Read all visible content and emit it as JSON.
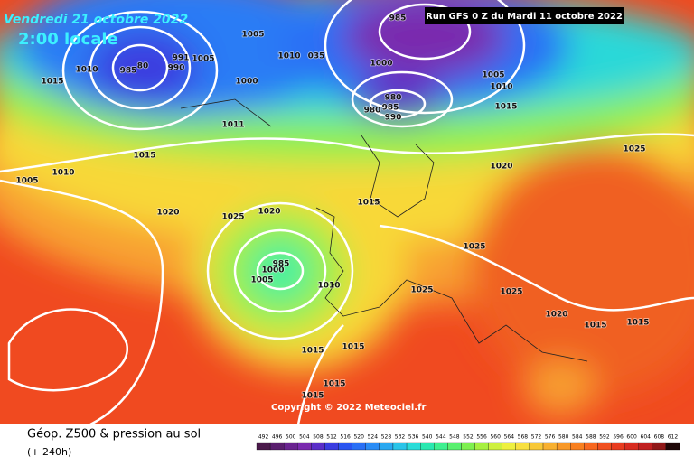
{
  "header": {
    "date": "Vendredi 21 octobre 2022",
    "time": "2:00 locale",
    "run": "Run GFS 0 Z du Mardi 11 octobre 2022"
  },
  "isobar_labels": [
    "985",
    "1005",
    "1010",
    "1015",
    "985",
    "80",
    "990",
    "991",
    "1005",
    "1000",
    "1010",
    "035",
    "1000",
    "980",
    "980",
    "985",
    "990",
    "1005",
    "1010",
    "1015",
    "1015",
    "1005",
    "1010",
    "1011",
    "1020",
    "1025",
    "1020",
    "1025",
    "1020",
    "1015",
    "1025",
    "985",
    "1000",
    "1005",
    "1010",
    "1025",
    "1025",
    "1020",
    "1015",
    "1015",
    "1015",
    "1015",
    "1015",
    "1015"
  ],
  "copyright": "Copyright © 2022 Meteociel.fr",
  "footer": {
    "title": "Géop. Z500 & pression au sol",
    "subtitle": "(+ 240h)"
  },
  "scale": {
    "values": [
      492,
      496,
      500,
      504,
      508,
      512,
      516,
      520,
      524,
      528,
      532,
      536,
      540,
      544,
      548,
      552,
      556,
      560,
      564,
      568,
      572,
      576,
      580,
      584,
      588,
      592,
      596,
      600,
      604,
      608,
      612
    ],
    "colors": [
      "#4b1a4b",
      "#5a1e6e",
      "#6a2390",
      "#7a2aae",
      "#5a2ec8",
      "#3a3ce0",
      "#2a55f0",
      "#2a70f5",
      "#2a8cf5",
      "#2aa8f0",
      "#2ac4e8",
      "#2adcd8",
      "#2ae8b0",
      "#3ef090",
      "#5af070",
      "#7ef050",
      "#a6f040",
      "#cef040",
      "#eef040",
      "#f8e040",
      "#f8c838",
      "#f8b030",
      "#f89828",
      "#f88020",
      "#f86820",
      "#f05020",
      "#e83c20",
      "#d82c20",
      "#c02020",
      "#901818",
      "#200808"
    ]
  }
}
